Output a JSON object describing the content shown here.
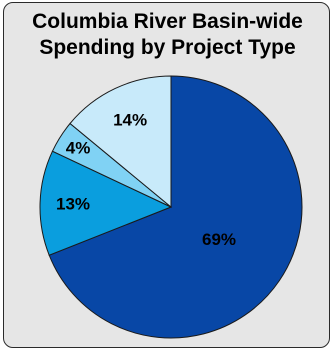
{
  "chart_data": {
    "type": "pie",
    "title_lines": [
      "Columbia River Basin-wide",
      "Spending by Project Type"
    ],
    "slices": [
      {
        "value": 69,
        "label": "69%",
        "color": "#0847a6"
      },
      {
        "value": 13,
        "label": "13%",
        "color": "#0a9ede"
      },
      {
        "value": 4,
        "label": "4%",
        "color": "#80d2f4"
      },
      {
        "value": 14,
        "label": "14%",
        "color": "#c8eafa"
      }
    ],
    "start": "12 o'clock",
    "direction": "clockwise",
    "legend": "none"
  }
}
